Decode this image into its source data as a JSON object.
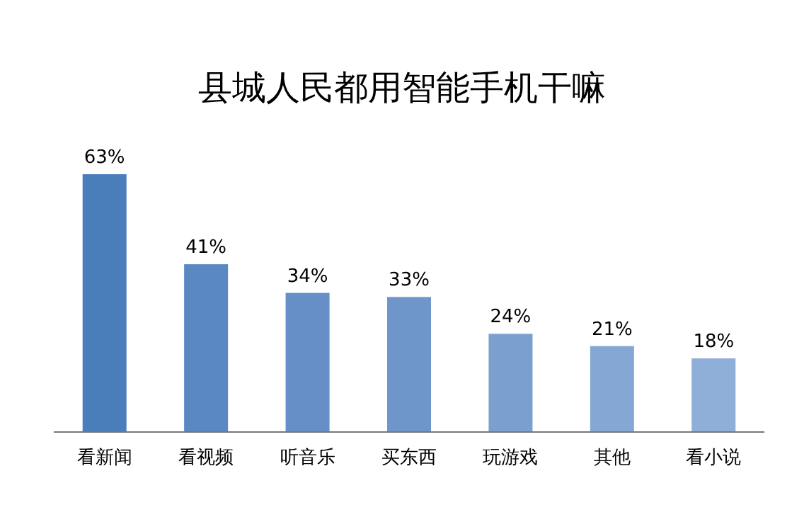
{
  "chart_data": {
    "type": "bar",
    "title": "县城人民都用智能手机干嘛",
    "categories": [
      "看新闻",
      "看视频",
      "听音乐",
      "买东西",
      "玩游戏",
      "其他",
      "看小说"
    ],
    "values": [
      63,
      41,
      34,
      33,
      24,
      21,
      18
    ],
    "colors": [
      "#4a7ebb",
      "#5a88c2",
      "#658fc6",
      "#6f96ca",
      "#7ba0d0",
      "#85a7d4",
      "#8fafd9"
    ],
    "value_labels": [
      "63%",
      "41%",
      "34%",
      "33%",
      "24%",
      "21%",
      "18%"
    ]
  }
}
